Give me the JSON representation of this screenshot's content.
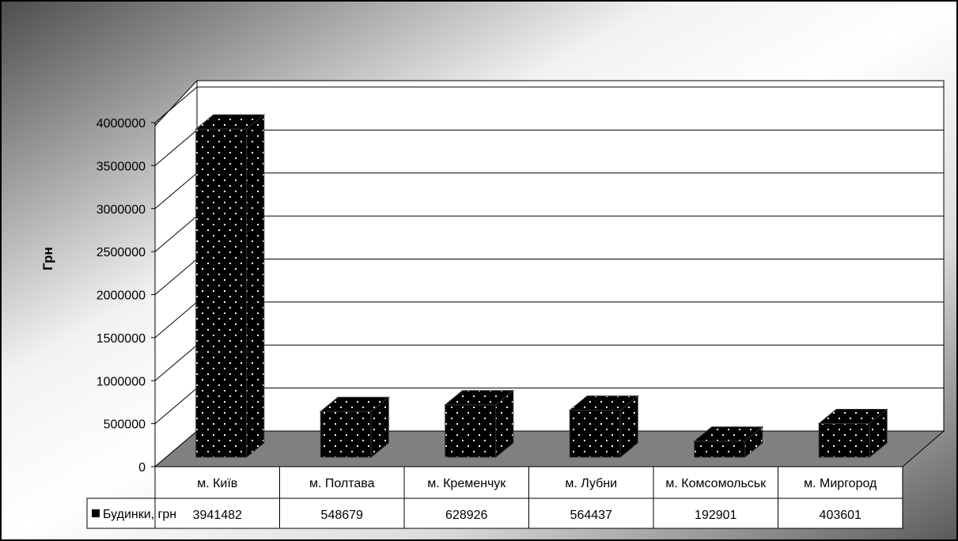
{
  "chart_data": {
    "type": "bar",
    "title": "",
    "xlabel": "",
    "ylabel": "Грн",
    "ylim": [
      0,
      4000000
    ],
    "yticks": [
      0,
      500000,
      1000000,
      1500000,
      2000000,
      2500000,
      3000000,
      3500000,
      4000000
    ],
    "grid": true,
    "legend": "data-table-left",
    "categories": [
      "м. Київ",
      "м. Полтава",
      "м. Кременчук",
      "м. Лубни",
      "м. Комсомольськ",
      "м. Миргород"
    ],
    "series": [
      {
        "name": "Будинки, грн",
        "values": [
          3941482,
          548679,
          628926,
          564437,
          192901,
          403601
        ],
        "value_labels": [
          "3941482",
          "548679",
          "628926",
          "564437",
          "192901",
          "403601"
        ]
      }
    ],
    "style": "3d-column",
    "colors": {
      "bar": "#000000",
      "dots": "#ffffff",
      "floor": "#808080",
      "wall": "#ffffff"
    }
  }
}
